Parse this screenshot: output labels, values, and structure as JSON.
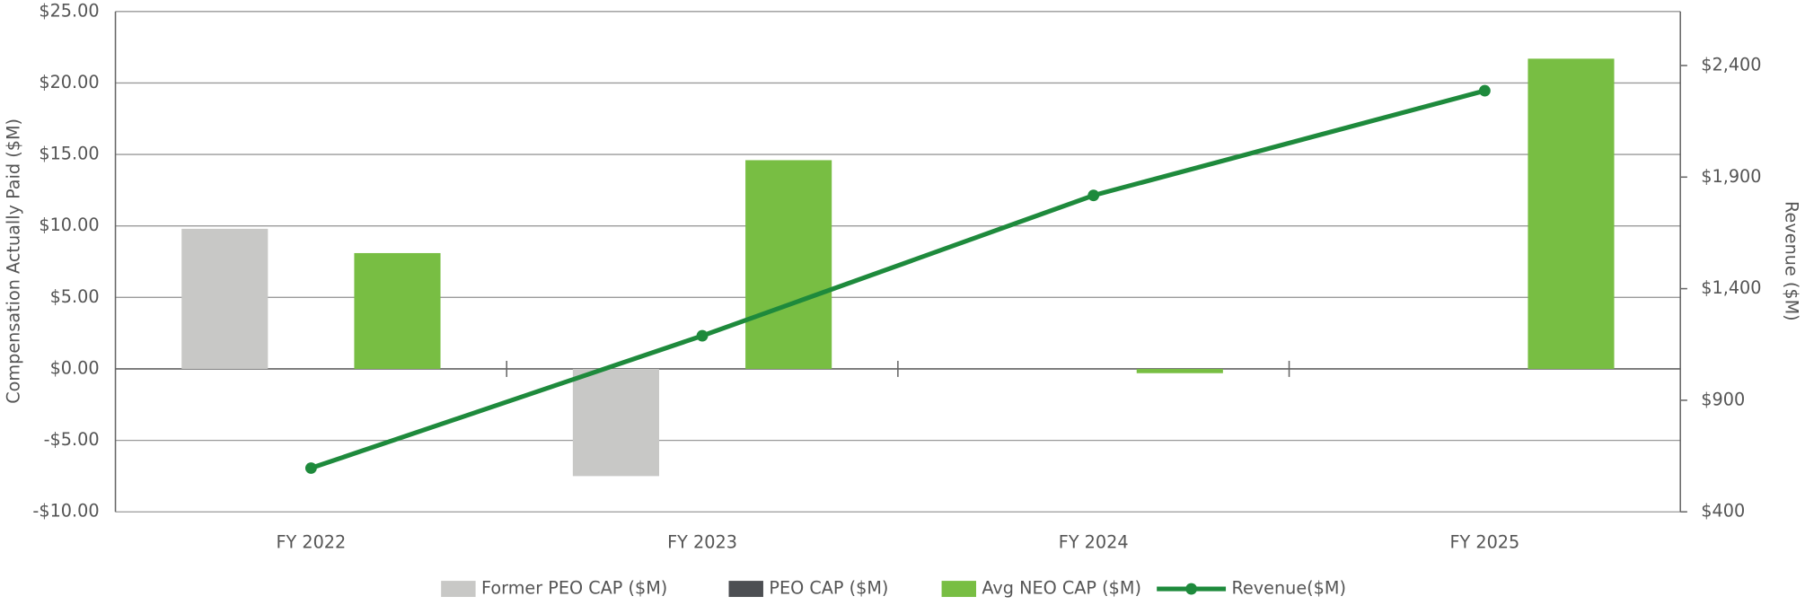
{
  "chart_data": {
    "type": "bar",
    "categories": [
      "FY 2022",
      "FY 2023",
      "FY 2024",
      "FY 2025"
    ],
    "series": [
      {
        "name": "Former PEO CAP ($M)",
        "color": "#c8c8c6",
        "type": "bar",
        "values": [
          9.8,
          -7.5,
          null,
          null
        ]
      },
      {
        "name": "PEO CAP ($M)",
        "color": "#4d4f53",
        "type": "bar",
        "values": [
          null,
          null,
          null,
          null
        ]
      },
      {
        "name": "Avg NEO CAP ($M)",
        "color": "#78be43",
        "type": "bar",
        "values": [
          8.1,
          14.6,
          -0.3,
          21.7
        ]
      },
      {
        "name": "Revenue($M)",
        "color": "#1e8a3c",
        "type": "line",
        "axis": "y2",
        "values": [
          596,
          1189,
          1818,
          2287
        ]
      }
    ],
    "ylabel": "Compensation Actually Paid ($M)",
    "y2label": "Revenue ($M)",
    "ylim": [
      -10,
      25
    ],
    "yticks": [
      {
        "value": -10,
        "label": "-$10.00"
      },
      {
        "value": -5,
        "label": "-$5.00"
      },
      {
        "value": 0,
        "label": "$0.00"
      },
      {
        "value": 5,
        "label": "$5.00"
      },
      {
        "value": 10,
        "label": "$10.00"
      },
      {
        "value": 15,
        "label": "$15.00"
      },
      {
        "value": 20,
        "label": "$20.00"
      },
      {
        "value": 25,
        "label": "$25.00"
      }
    ],
    "y2lim": [
      400,
      2642
    ],
    "y2ticks": [
      {
        "value": 400,
        "label": "$400"
      },
      {
        "value": 900,
        "label": "$900"
      },
      {
        "value": 1400,
        "label": "$1,400"
      },
      {
        "value": 1900,
        "label": "$1,900"
      },
      {
        "value": 2400,
        "label": "$2,400"
      }
    ],
    "grid": true,
    "legend": "bottom"
  }
}
